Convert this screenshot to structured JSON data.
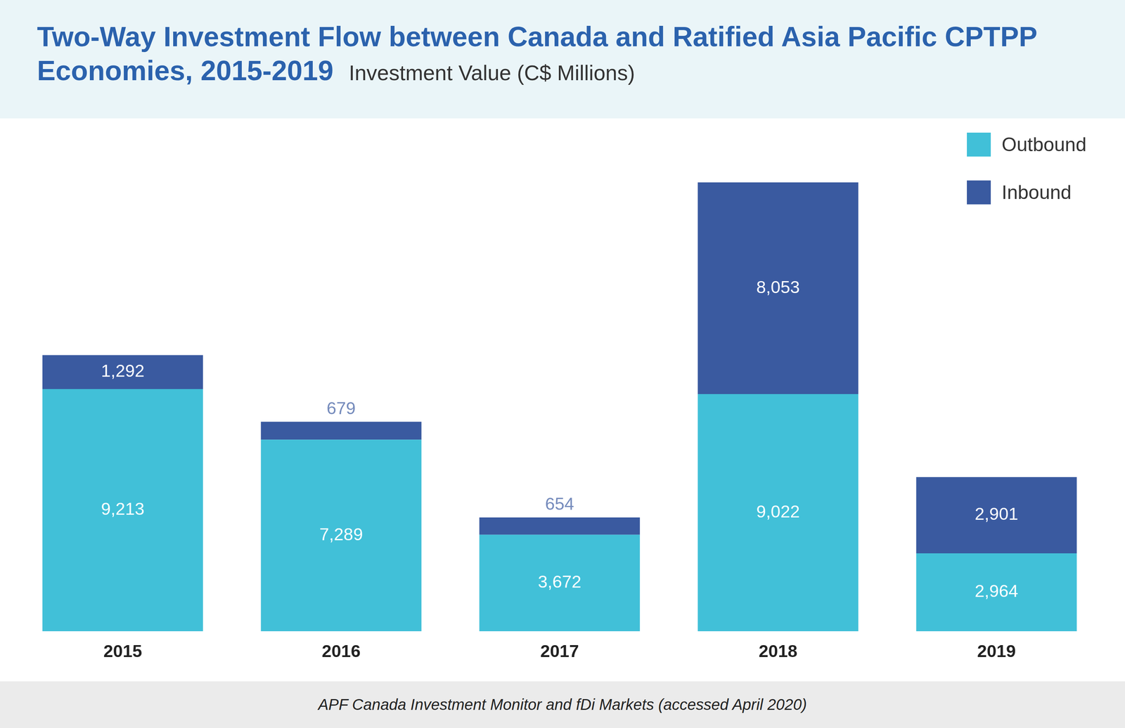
{
  "chart_data": {
    "type": "bar",
    "title": "Two-Way Investment Flow between Canada and Ratified Asia Pacific CPTPP Economies, 2015-2019",
    "subtitle": "Investment Value (C$ Millions)",
    "source": "APF Canada Investment Monitor and fDi Markets (accessed April 2020)",
    "categories": [
      "2015",
      "2016",
      "2017",
      "2018",
      "2019"
    ],
    "series": [
      {
        "name": "Outbound",
        "color": "#41c0d8",
        "values": [
          9213,
          7289,
          3672,
          9022,
          2964
        ],
        "value_labels": [
          "9,213",
          "7,289",
          "3,672",
          "9,022",
          "2,964"
        ]
      },
      {
        "name": "Inbound",
        "color": "#3a5aa0",
        "values": [
          1292,
          679,
          654,
          8053,
          2901
        ],
        "value_labels": [
          "1,292",
          "679",
          "654",
          "8,053",
          "2,901"
        ]
      }
    ],
    "stacked": true,
    "data_labels": true,
    "legend": "upper right",
    "tick_labels": "x",
    "grid": false
  }
}
